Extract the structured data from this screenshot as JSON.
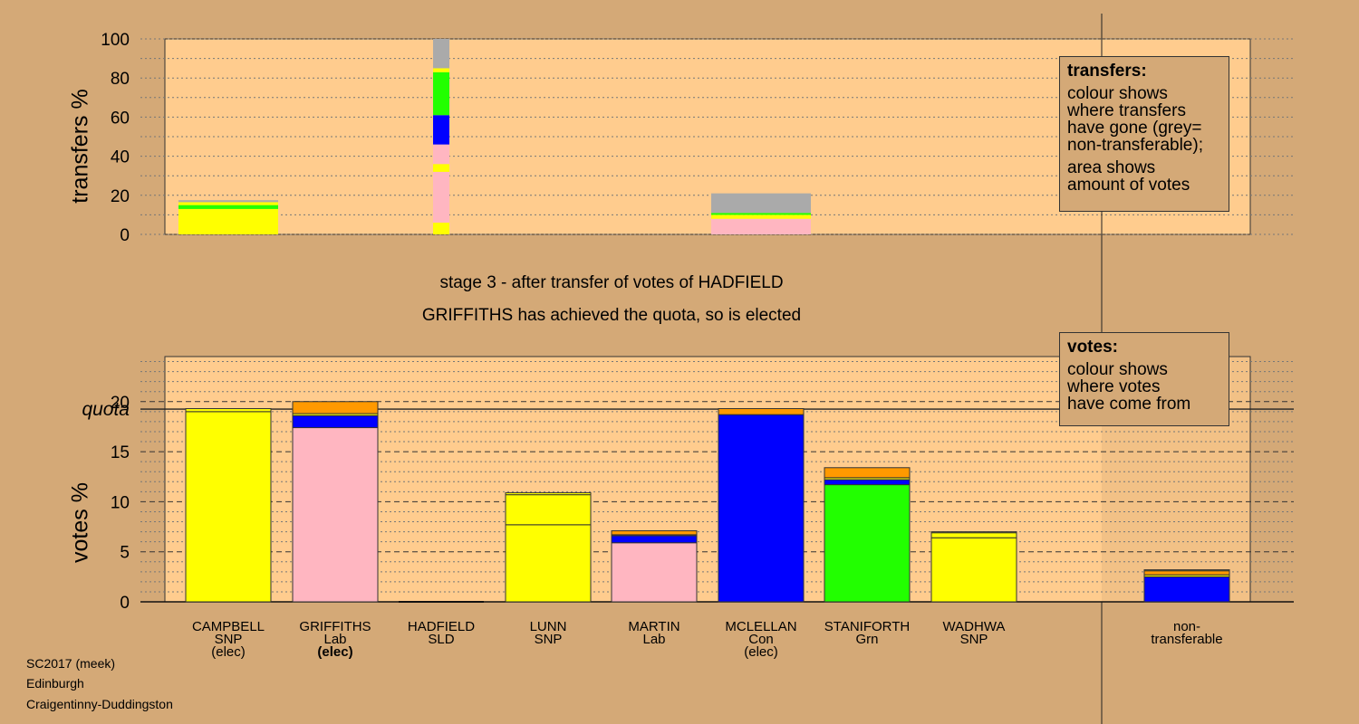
{
  "chart_data": [
    {
      "type": "bar",
      "stacked": true,
      "ylabel": "transfers %",
      "ylim": [
        0,
        100
      ],
      "yticks": [
        0,
        20,
        40,
        60,
        80,
        100
      ],
      "categories": [
        "CAMPBELL",
        "GRIFFITHS",
        "HADFIELD",
        "LUNN",
        "MARTIN",
        "MCLELLAN",
        "STANIFORTH",
        "WADHWA"
      ],
      "series": [
        {
          "category": "CAMPBELL",
          "segments": [
            {
              "from": 0,
              "to": 13,
              "color": "#ffff00"
            },
            {
              "from": 13,
              "to": 15,
              "color": "#22ff00"
            },
            {
              "from": 15,
              "to": 16.5,
              "color": "#ffff00"
            },
            {
              "from": 16.5,
              "to": 17.5,
              "color": "#aaaaaa"
            }
          ]
        },
        {
          "category": "HADFIELD",
          "segments": [
            {
              "from": 0,
              "to": 6,
              "color": "#ffff00"
            },
            {
              "from": 6,
              "to": 32,
              "color": "#ffb6c1"
            },
            {
              "from": 32,
              "to": 36,
              "color": "#ffff00"
            },
            {
              "from": 36,
              "to": 46,
              "color": "#ffb6c1"
            },
            {
              "from": 46,
              "to": 61,
              "color": "#0000ff"
            },
            {
              "from": 61,
              "to": 83,
              "color": "#22ff00"
            },
            {
              "from": 83,
              "to": 85,
              "color": "#ffff00"
            },
            {
              "from": 85,
              "to": 100,
              "color": "#aaaaaa"
            }
          ]
        },
        {
          "category": "MCLELLAN",
          "segments": [
            {
              "from": 0,
              "to": 8,
              "color": "#ffb6c1"
            },
            {
              "from": 8,
              "to": 10,
              "color": "#ffff00"
            },
            {
              "from": 10,
              "to": 11,
              "color": "#22ff00"
            },
            {
              "from": 11,
              "to": 21,
              "color": "#aaaaaa"
            }
          ]
        }
      ]
    },
    {
      "type": "bar",
      "stacked": true,
      "ylabel": "votes %",
      "ylim": [
        0,
        24.5
      ],
      "yticks": [
        0,
        5,
        10,
        15,
        20
      ],
      "quota": 19.25,
      "quota_label": "quota",
      "categories": [
        "CAMPBELL",
        "GRIFFITHS",
        "HADFIELD",
        "LUNN",
        "MARTIN",
        "MCLELLAN",
        "STANIFORTH",
        "WADHWA",
        "non-transferable"
      ],
      "bars": [
        {
          "name": "CAMPBELL",
          "party": "SNP",
          "note": "(elec)",
          "note_bold": false,
          "segments": [
            {
              "v": 19.0,
              "c": "#ffff00"
            },
            {
              "v": 0.3,
              "c": "#ffff00"
            }
          ]
        },
        {
          "name": "GRIFFITHS",
          "party": "Lab",
          "note": "(elec)",
          "note_bold": true,
          "segments": [
            {
              "v": 17.4,
              "c": "#ffb6c1"
            },
            {
              "v": 1.2,
              "c": "#0000ff"
            },
            {
              "v": 0.2,
              "c": "#ffff00"
            },
            {
              "v": 1.2,
              "c": "#ff9900"
            }
          ]
        },
        {
          "name": "HADFIELD",
          "party": "SLD",
          "note": "",
          "note_bold": false,
          "segments": []
        },
        {
          "name": "LUNN",
          "party": "SNP",
          "note": "",
          "note_bold": false,
          "segments": [
            {
              "v": 7.7,
              "c": "#ffff00"
            },
            {
              "v": 3.0,
              "c": "#ffff00"
            },
            {
              "v": 0.2,
              "c": "#ffff00"
            }
          ]
        },
        {
          "name": "MARTIN",
          "party": "Lab",
          "note": "",
          "note_bold": false,
          "segments": [
            {
              "v": 5.9,
              "c": "#ffb6c1"
            },
            {
              "v": 0.7,
              "c": "#0000ff"
            },
            {
              "v": 0.1,
              "c": "#ffff00"
            },
            {
              "v": 0.4,
              "c": "#ff9900"
            }
          ]
        },
        {
          "name": "MCLELLAN",
          "party": "Con",
          "note": "(elec)",
          "note_bold": false,
          "segments": [
            {
              "v": 18.7,
              "c": "#0000ff"
            },
            {
              "v": 0.6,
              "c": "#ff9900"
            }
          ]
        },
        {
          "name": "STANIFORTH",
          "party": "Grn",
          "note": "",
          "note_bold": false,
          "segments": [
            {
              "v": 11.7,
              "c": "#22ff00"
            },
            {
              "v": 0.5,
              "c": "#0000ff"
            },
            {
              "v": 0.2,
              "c": "#ffff00"
            },
            {
              "v": 1.0,
              "c": "#ff9900"
            }
          ]
        },
        {
          "name": "WADHWA",
          "party": "SNP",
          "note": "",
          "note_bold": false,
          "segments": [
            {
              "v": 6.4,
              "c": "#ffff00"
            },
            {
              "v": 0.5,
              "c": "#ffff00"
            },
            {
              "v": 0.1,
              "c": "#ffff00"
            }
          ]
        },
        {
          "name": "non-transferable",
          "party": "",
          "note": "",
          "note_bold": false,
          "segments": [
            {
              "v": 2.5,
              "c": "#0000ff"
            },
            {
              "v": 0.2,
              "c": "#ffff00"
            },
            {
              "v": 0.4,
              "c": "#ff9900"
            },
            {
              "v": 0.1,
              "c": "#ffff00"
            }
          ]
        }
      ]
    }
  ],
  "labels": {
    "stage": "stage 3 - after transfer of votes of HADFIELD",
    "elected": "GRIFFITHS has achieved the quota, so is elected",
    "nontransferable_line1": "non-",
    "nontransferable_line2": "transferable"
  },
  "legend_transfers": {
    "title": "transfers:",
    "lines": [
      "colour shows",
      "where transfers",
      "have gone (grey=",
      "non-transferable);"
    ],
    "lines2": [
      "area shows",
      "amount of votes"
    ]
  },
  "legend_votes": {
    "title": "votes:",
    "lines": [
      "colour shows",
      "where votes",
      "have come from"
    ]
  },
  "footer": {
    "line1": "SC2017 (meek)",
    "line2": "Edinburgh",
    "line3": "Craigentinny-Duddingston"
  },
  "colors": {
    "background": "#d4a977",
    "plot_bg": "#ffcc8e"
  }
}
